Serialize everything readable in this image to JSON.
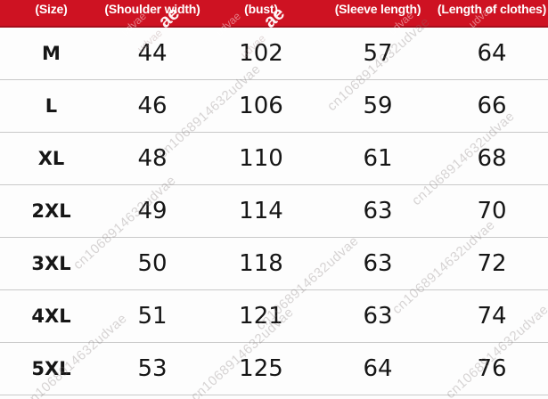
{
  "watermark": {
    "text": "cn1068914632udvae",
    "bold_fragment": "ae",
    "light_fragment": "udvae"
  },
  "colors": {
    "header_bg": "#ce1222",
    "header_border": "#a50d1b",
    "header_text": "#ffffff",
    "row_divider": "#c9c9c9",
    "body_text": "#161616"
  },
  "table": {
    "headers": [
      "(Size)",
      "(Shoulder width)",
      "(bust)",
      "(Sleeve length)",
      "(Length of clothes)"
    ],
    "rows": [
      {
        "size": "M",
        "shoulder": "44",
        "bust": "102",
        "sleeve": "57",
        "length": "64"
      },
      {
        "size": "L",
        "shoulder": "46",
        "bust": "106",
        "sleeve": "59",
        "length": "66"
      },
      {
        "size": "XL",
        "shoulder": "48",
        "bust": "110",
        "sleeve": "61",
        "length": "68"
      },
      {
        "size": "2XL",
        "shoulder": "49",
        "bust": "114",
        "sleeve": "63",
        "length": "70"
      },
      {
        "size": "3XL",
        "shoulder": "50",
        "bust": "118",
        "sleeve": "63",
        "length": "72"
      },
      {
        "size": "4XL",
        "shoulder": "51",
        "bust": "121",
        "sleeve": "63",
        "length": "74"
      },
      {
        "size": "5XL",
        "shoulder": "53",
        "bust": "125",
        "sleeve": "64",
        "length": "76"
      }
    ]
  }
}
